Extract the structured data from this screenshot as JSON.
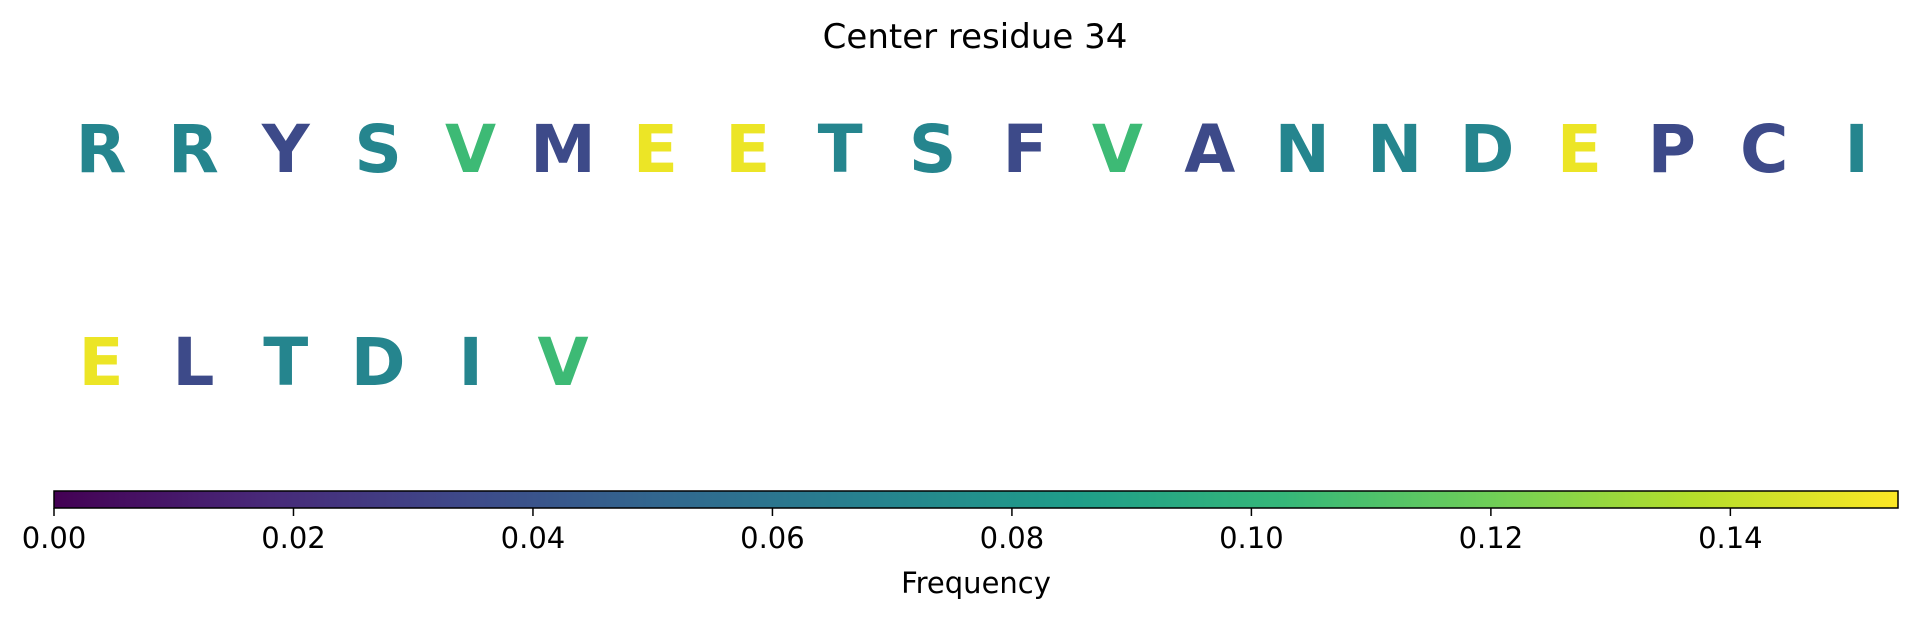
{
  "chart_data": {
    "type": "heatmap",
    "title": "Center residue 34",
    "residues": [
      {
        "letter": "R",
        "frequency": 0.07
      },
      {
        "letter": "R",
        "frequency": 0.07
      },
      {
        "letter": "Y",
        "frequency": 0.035
      },
      {
        "letter": "S",
        "frequency": 0.07
      },
      {
        "letter": "V",
        "frequency": 0.105
      },
      {
        "letter": "M",
        "frequency": 0.035
      },
      {
        "letter": "E",
        "frequency": 0.15
      },
      {
        "letter": "E",
        "frequency": 0.15
      },
      {
        "letter": "T",
        "frequency": 0.07
      },
      {
        "letter": "S",
        "frequency": 0.07
      },
      {
        "letter": "F",
        "frequency": 0.035
      },
      {
        "letter": "V",
        "frequency": 0.105
      },
      {
        "letter": "A",
        "frequency": 0.035
      },
      {
        "letter": "N",
        "frequency": 0.07
      },
      {
        "letter": "N",
        "frequency": 0.07
      },
      {
        "letter": "D",
        "frequency": 0.07
      },
      {
        "letter": "E",
        "frequency": 0.15
      },
      {
        "letter": "P",
        "frequency": 0.035
      },
      {
        "letter": "C",
        "frequency": 0.035
      },
      {
        "letter": "I",
        "frequency": 0.07
      },
      {
        "letter": "E",
        "frequency": 0.15
      },
      {
        "letter": "L",
        "frequency": 0.035
      },
      {
        "letter": "T",
        "frequency": 0.07
      },
      {
        "letter": "D",
        "frequency": 0.07
      },
      {
        "letter": "I",
        "frequency": 0.07
      },
      {
        "letter": "V",
        "frequency": 0.105
      }
    ],
    "colorbar": {
      "label": "Frequency",
      "range": [
        0,
        0.154
      ],
      "ticks": [
        0.0,
        0.02,
        0.04,
        0.06,
        0.08,
        0.1,
        0.12,
        0.14
      ],
      "tick_labels": [
        "0.00",
        "0.02",
        "0.04",
        "0.06",
        "0.08",
        "0.10",
        "0.12",
        "0.14"
      ],
      "colormap": "viridis",
      "colormap_stops": [
        "#440154",
        "#482878",
        "#3e4989",
        "#31688e",
        "#26828e",
        "#1f9e89",
        "#35b779",
        "#6ece58",
        "#b5de2b",
        "#fde725"
      ]
    }
  }
}
